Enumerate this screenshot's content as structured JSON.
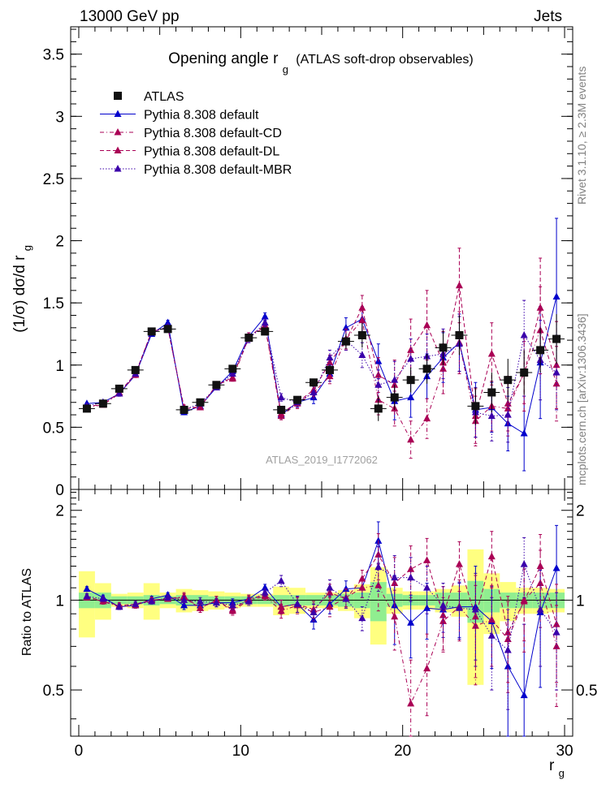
{
  "header": {
    "left": "13000 GeV pp",
    "right": "Jets"
  },
  "side_text": {
    "rivet": "Rivet 3.1.10, ≥ 2.3M events",
    "mcplots": "mcplots.cern.ch [arXiv:1306.3436]"
  },
  "chart_data": [
    {
      "type": "scatter",
      "title_main": "Opening angle r",
      "title_sub": "g",
      "title_rest": "(ATLAS soft-drop observables)",
      "ylabel": "(1/σ) dσ/d r",
      "ylabel_sub": "g",
      "watermark": "ATLAS_2019_I1772062",
      "xlim": [
        -0.5,
        30.5
      ],
      "ylim": [
        0,
        3.72
      ],
      "yticks": [
        0,
        0.5,
        1,
        1.5,
        2,
        2.5,
        3,
        3.5
      ],
      "ytick_labels": [
        "0",
        "0.5",
        "1",
        "1.5",
        "2",
        "2.5",
        "3",
        "3.5"
      ],
      "legend_position": "top-left",
      "x": [
        0.5,
        1.5,
        2.5,
        3.5,
        4.5,
        5.5,
        6.5,
        7.5,
        8.5,
        9.5,
        10.5,
        11.5,
        12.5,
        13.5,
        14.5,
        15.5,
        16.5,
        17.5,
        18.5,
        19.5,
        20.5,
        21.5,
        22.5,
        23.5,
        24.5,
        25.5,
        26.5,
        27.5,
        28.5,
        29.5
      ],
      "series": [
        {
          "name": "ATLAS",
          "style": "data",
          "color": "#000000",
          "values": [
            0.65,
            0.69,
            0.81,
            0.96,
            1.27,
            1.29,
            0.64,
            0.7,
            0.84,
            0.97,
            1.22,
            1.27,
            0.64,
            0.72,
            0.86,
            0.96,
            1.19,
            1.24,
            0.65,
            0.74,
            0.88,
            0.97,
            1.14,
            1.24,
            0.67,
            0.78,
            0.88,
            0.94,
            1.12,
            1.21
          ],
          "errors": [
            0.01,
            0.01,
            0.01,
            0.02,
            0.02,
            0.02,
            0.01,
            0.02,
            0.02,
            0.02,
            0.02,
            0.03,
            0.02,
            0.03,
            0.03,
            0.04,
            0.06,
            0.1,
            0.1,
            0.1,
            0.1,
            0.12,
            0.14,
            0.16,
            0.15,
            0.16,
            0.17,
            0.18,
            0.18,
            0.2
          ]
        },
        {
          "name": "Pythia 8.308 default",
          "style": "solid",
          "color": "#0000cc",
          "values": [
            0.69,
            0.7,
            0.77,
            0.92,
            1.25,
            1.34,
            0.62,
            0.67,
            0.82,
            0.95,
            1.23,
            1.39,
            0.6,
            0.7,
            0.74,
            0.93,
            1.3,
            1.37,
            1.03,
            0.71,
            0.74,
            0.91,
            1.06,
            1.18,
            0.64,
            0.66,
            0.53,
            0.45,
            1.02,
            1.55
          ],
          "errors": [
            0.01,
            0.01,
            0.02,
            0.02,
            0.02,
            0.02,
            0.02,
            0.02,
            0.02,
            0.02,
            0.03,
            0.03,
            0.03,
            0.04,
            0.05,
            0.06,
            0.08,
            0.1,
            0.14,
            0.15,
            0.16,
            0.18,
            0.2,
            0.23,
            0.22,
            0.2,
            0.22,
            0.3,
            0.45,
            0.63
          ]
        },
        {
          "name": "Pythia 8.308 default-CD",
          "style": "dashdot",
          "color": "#aa0055",
          "values": [
            0.66,
            0.68,
            0.77,
            0.92,
            1.27,
            1.3,
            0.66,
            0.66,
            0.84,
            0.89,
            1.22,
            1.31,
            0.59,
            0.69,
            0.78,
            0.91,
            1.21,
            1.36,
            0.72,
            0.65,
            0.4,
            0.57,
            0.97,
            1.18,
            0.55,
            0.67,
            0.65,
            0.94,
            1.28,
            0.85
          ],
          "errors": [
            0.01,
            0.01,
            0.02,
            0.02,
            0.02,
            0.02,
            0.02,
            0.02,
            0.02,
            0.02,
            0.03,
            0.03,
            0.03,
            0.04,
            0.05,
            0.06,
            0.08,
            0.1,
            0.12,
            0.14,
            0.15,
            0.16,
            0.2,
            0.25,
            0.2,
            0.2,
            0.22,
            0.25,
            0.35,
            0.3
          ]
        },
        {
          "name": "Pythia 8.308 default-DL",
          "style": "dashed",
          "color": "#aa0055",
          "values": [
            0.67,
            0.68,
            0.78,
            0.93,
            1.27,
            1.3,
            0.65,
            0.66,
            0.84,
            0.9,
            1.23,
            1.32,
            0.61,
            0.7,
            0.8,
            1.02,
            1.2,
            1.46,
            0.92,
            0.84,
            1.12,
            1.32,
            1.02,
            1.64,
            0.59,
            1.09,
            0.69,
            0.93,
            1.46,
            1.0
          ],
          "errors": [
            0.01,
            0.01,
            0.02,
            0.02,
            0.02,
            0.02,
            0.02,
            0.02,
            0.02,
            0.02,
            0.03,
            0.03,
            0.03,
            0.04,
            0.05,
            0.06,
            0.08,
            0.1,
            0.14,
            0.2,
            0.25,
            0.28,
            0.25,
            0.3,
            0.22,
            0.25,
            0.22,
            0.3,
            0.4,
            0.35
          ]
        },
        {
          "name": "Pythia 8.308 default-MBR",
          "style": "dotted",
          "color": "#3b00aa",
          "values": [
            0.67,
            0.7,
            0.77,
            0.93,
            1.26,
            1.31,
            0.64,
            0.69,
            0.82,
            0.93,
            1.21,
            1.34,
            0.74,
            0.7,
            0.78,
            1.06,
            1.2,
            1.08,
            0.84,
            0.88,
            1.05,
            1.07,
            1.09,
            1.17,
            0.62,
            0.59,
            0.6,
            1.24,
            1.04,
            0.94
          ],
          "errors": [
            0.01,
            0.01,
            0.02,
            0.02,
            0.02,
            0.02,
            0.02,
            0.02,
            0.02,
            0.02,
            0.03,
            0.03,
            0.03,
            0.04,
            0.05,
            0.06,
            0.08,
            0.1,
            0.12,
            0.15,
            0.16,
            0.18,
            0.2,
            0.22,
            0.2,
            0.2,
            0.22,
            0.28,
            0.32,
            0.3
          ]
        }
      ]
    },
    {
      "type": "scatter",
      "ylabel": "Ratio to ATLAS",
      "xlabel": "r",
      "xlabel_sub": "g",
      "xlim": [
        -0.5,
        30.5
      ],
      "ylim": [
        0.35,
        2.35
      ],
      "xticks": [
        0,
        10,
        20,
        30
      ],
      "xtick_labels": [
        "0",
        "10",
        "20",
        "30"
      ],
      "yticks": [
        0.5,
        1,
        2
      ],
      "ytick_labels": [
        "0.5",
        "1",
        "2"
      ],
      "bands": {
        "inner": [
          0.06,
          0.06,
          0.03,
          0.03,
          0.04,
          0.03,
          0.04,
          0.04,
          0.03,
          0.03,
          0.03,
          0.03,
          0.04,
          0.04,
          0.04,
          0.04,
          0.05,
          0.06,
          0.15,
          0.05,
          0.04,
          0.04,
          0.06,
          0.06,
          0.16,
          0.09,
          0.06,
          0.06,
          0.06,
          0.06
        ],
        "outer": [
          0.25,
          0.14,
          0.05,
          0.06,
          0.14,
          0.06,
          0.09,
          0.08,
          0.07,
          0.06,
          0.05,
          0.05,
          0.11,
          0.1,
          0.06,
          0.06,
          0.08,
          0.13,
          0.29,
          0.1,
          0.07,
          0.07,
          0.09,
          0.12,
          0.48,
          0.23,
          0.15,
          0.1,
          0.1,
          0.09
        ],
        "inner_color": "#90ee90",
        "outer_color": "#ffff80"
      },
      "series": [
        {
          "name": "Pythia 8.308 default",
          "values": [
            1.09,
            1.02,
            0.95,
            0.96,
            1.01,
            1.04,
            0.96,
            0.96,
            0.98,
            0.98,
            1.01,
            1.1,
            0.95,
            0.97,
            0.86,
            0.97,
            1.09,
            1.1,
            1.58,
            0.96,
            0.84,
            0.94,
            0.93,
            0.95,
            0.95,
            0.85,
            0.6,
            0.48,
            0.91,
            1.28
          ],
          "errors": [
            0.02,
            0.02,
            0.02,
            0.02,
            0.02,
            0.02,
            0.03,
            0.03,
            0.03,
            0.03,
            0.03,
            0.03,
            0.05,
            0.06,
            0.06,
            0.07,
            0.07,
            0.08,
            0.25,
            0.25,
            0.2,
            0.2,
            0.18,
            0.2,
            0.35,
            0.26,
            0.26,
            0.35,
            0.4,
            0.5
          ]
        },
        {
          "name": "Pythia 8.308 default-CD",
          "values": [
            1.02,
            0.99,
            0.95,
            0.96,
            1.0,
            1.01,
            1.03,
            0.94,
            1.0,
            0.92,
            1.0,
            1.03,
            0.92,
            0.96,
            0.91,
            0.95,
            1.02,
            1.1,
            1.12,
            0.88,
            0.45,
            0.59,
            0.85,
            0.95,
            0.82,
            0.86,
            0.74,
            1.0,
            1.14,
            0.7
          ],
          "errors": [
            0.02,
            0.02,
            0.02,
            0.02,
            0.02,
            0.02,
            0.03,
            0.03,
            0.03,
            0.03,
            0.03,
            0.03,
            0.05,
            0.06,
            0.06,
            0.07,
            0.07,
            0.08,
            0.2,
            0.2,
            0.18,
            0.18,
            0.17,
            0.22,
            0.3,
            0.26,
            0.25,
            0.27,
            0.33,
            0.26
          ]
        },
        {
          "name": "Pythia 8.308 default-DL",
          "values": [
            1.03,
            0.99,
            0.96,
            0.97,
            1.0,
            1.01,
            1.02,
            0.94,
            1.0,
            0.93,
            1.01,
            1.04,
            0.95,
            0.97,
            0.93,
            1.06,
            1.01,
            1.18,
            1.42,
            1.14,
            1.27,
            1.36,
            0.89,
            1.32,
            0.88,
            1.4,
            0.78,
            0.99,
            1.3,
            0.83
          ],
          "errors": [
            0.02,
            0.02,
            0.02,
            0.02,
            0.02,
            0.02,
            0.03,
            0.03,
            0.03,
            0.03,
            0.03,
            0.03,
            0.05,
            0.06,
            0.06,
            0.07,
            0.07,
            0.08,
            0.25,
            0.25,
            0.25,
            0.25,
            0.22,
            0.25,
            0.33,
            0.3,
            0.25,
            0.32,
            0.36,
            0.3
          ]
        },
        {
          "name": "Pythia 8.308 default-MBR",
          "values": [
            1.03,
            1.01,
            0.95,
            0.97,
            0.99,
            1.02,
            1.0,
            0.99,
            0.98,
            0.96,
            0.99,
            1.06,
            1.16,
            0.97,
            0.91,
            1.1,
            1.01,
            0.87,
            1.29,
            1.19,
            1.19,
            1.1,
            0.96,
            0.94,
            0.93,
            0.76,
            0.68,
            1.32,
            0.93,
            0.78
          ],
          "errors": [
            0.02,
            0.02,
            0.02,
            0.02,
            0.02,
            0.02,
            0.03,
            0.03,
            0.03,
            0.03,
            0.03,
            0.03,
            0.05,
            0.06,
            0.06,
            0.07,
            0.07,
            0.08,
            0.22,
            0.22,
            0.2,
            0.2,
            0.18,
            0.2,
            0.3,
            0.26,
            0.25,
            0.3,
            0.33,
            0.28
          ]
        }
      ]
    }
  ]
}
